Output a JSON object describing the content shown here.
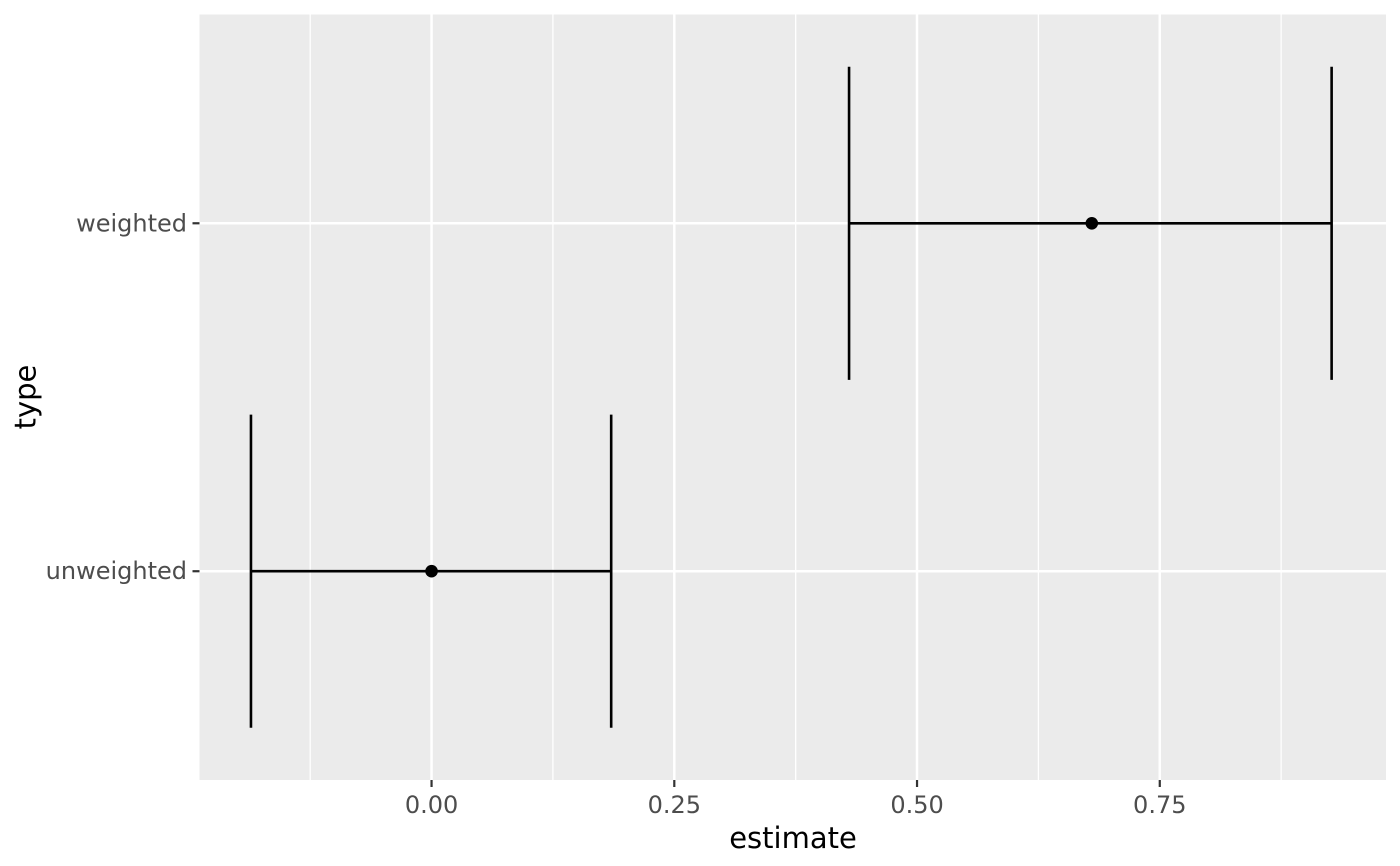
{
  "chart_data": {
    "type": "pointrange",
    "title": "",
    "xlabel": "estimate",
    "ylabel": "type",
    "categories": [
      "unweighted",
      "weighted"
    ],
    "series": [
      {
        "type": "unweighted",
        "estimate": 0.0,
        "conf_low": -0.186,
        "conf_high": 0.185
      },
      {
        "type": "weighted",
        "estimate": 0.68,
        "conf_low": 0.43,
        "conf_high": 0.927
      }
    ],
    "x_ticks": {
      "values": [
        0.0,
        0.25,
        0.5,
        0.75
      ],
      "labels": [
        "0.00",
        "0.25",
        "0.50",
        "0.75"
      ]
    },
    "x_minor_gridlines": [
      -0.125,
      0.125,
      0.375,
      0.625,
      0.875
    ],
    "xlim": [
      -0.239,
      0.983
    ],
    "ylim": [
      0.4,
      2.6
    ],
    "category_positions": {
      "unweighted": 1,
      "weighted": 2
    },
    "errorbar_cap_height": 0.9,
    "grid": "major+minor-x, major-y",
    "legend": "none",
    "style": {
      "outer_bg": "#FFFFFF",
      "panel_bg": "#EBEBEB",
      "grid_color": "#FFFFFF",
      "data_color": "#000000",
      "tick_label_color": "#4D4D4D",
      "tick_mark_color": "#333333",
      "axis_title_color": "#000000"
    }
  }
}
